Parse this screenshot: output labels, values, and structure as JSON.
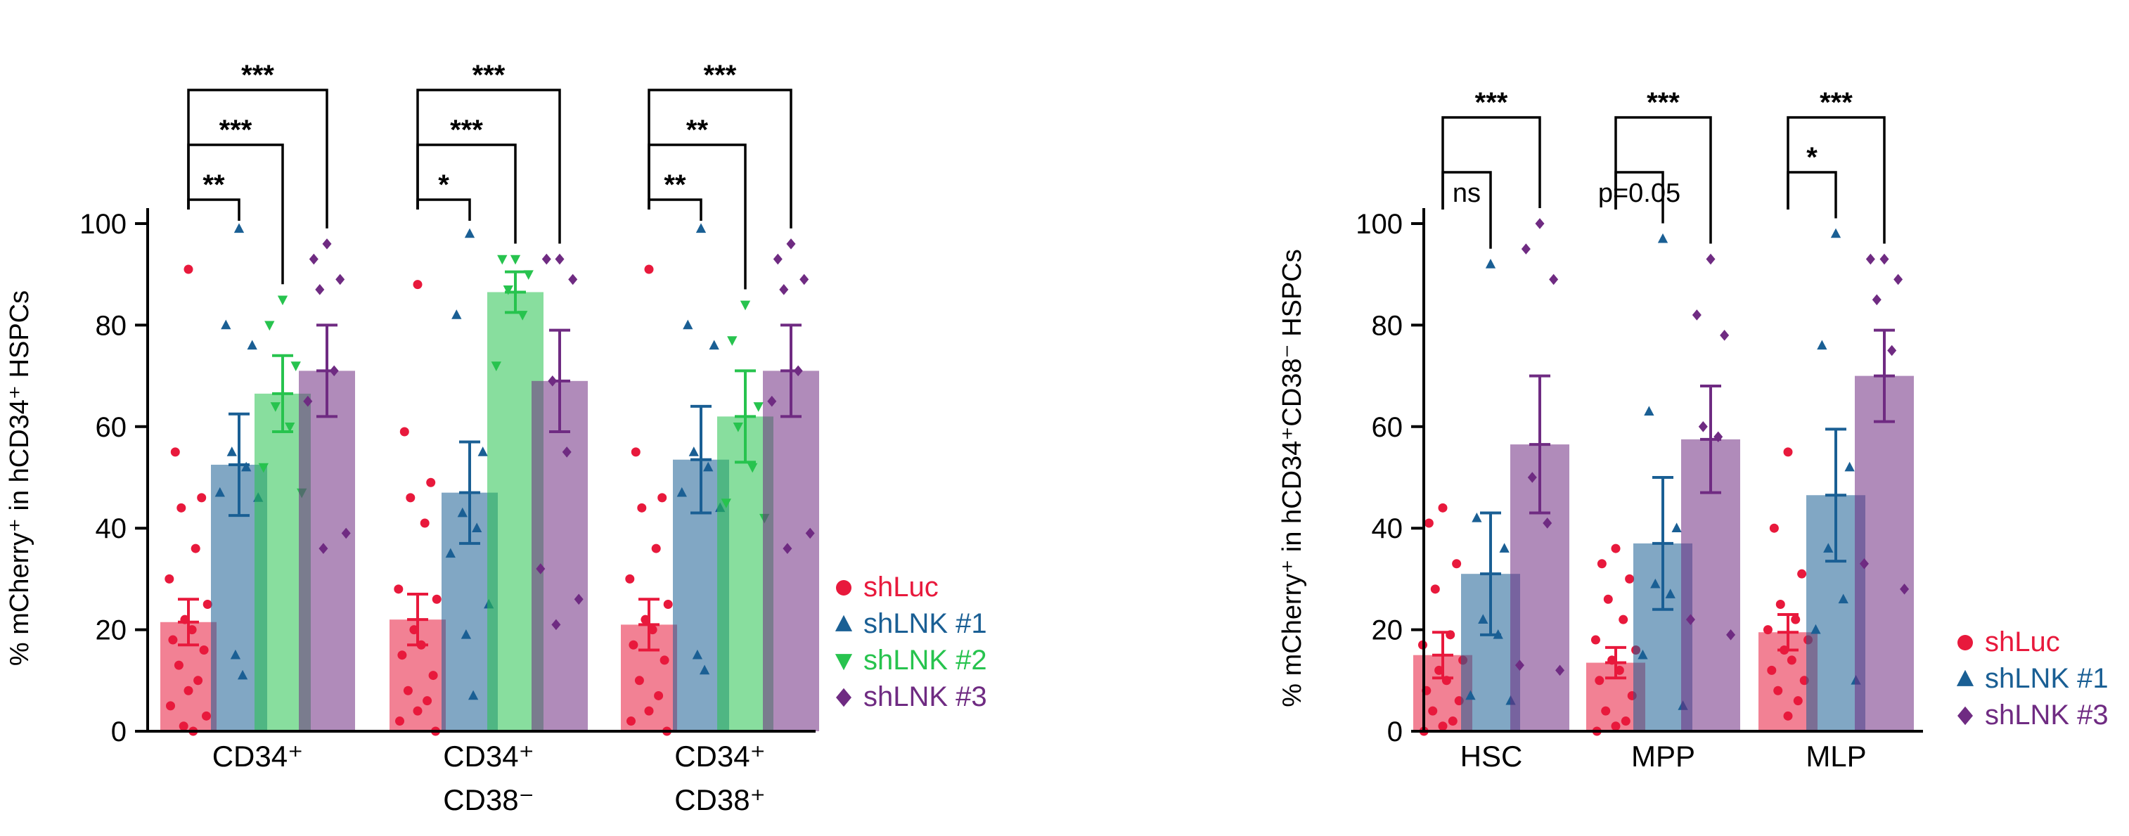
{
  "colors": {
    "shLuc": "#e8193c",
    "shLNK1": "#1a5f94",
    "shLNK2": "#27c34e",
    "shLNK3": "#6f2b82"
  },
  "chart_data": [
    {
      "type": "bar",
      "ylabel": "% mCherry⁺ in hCD34⁺ HSPCs",
      "ylim": [
        0,
        100
      ],
      "yticks": [
        "0",
        "20",
        "40",
        "60",
        "80",
        "100"
      ],
      "categories": [
        {
          "lines": [
            "CD34⁺"
          ]
        },
        {
          "lines": [
            "CD34⁺",
            "CD38⁻"
          ]
        },
        {
          "lines": [
            "CD34⁺",
            "CD38⁺"
          ]
        }
      ],
      "legend": [
        {
          "key": "shLuc",
          "label": "shLuc",
          "marker": "circle"
        },
        {
          "key": "shLNK1",
          "label": "shLNK #1",
          "marker": "triangle-up"
        },
        {
          "key": "shLNK2",
          "label": "shLNK #2",
          "marker": "triangle-down"
        },
        {
          "key": "shLNK3",
          "label": "shLNK #3",
          "marker": "diamond"
        }
      ],
      "series": [
        {
          "key": "shLuc",
          "marker": "circle",
          "means": [
            21.5,
            22,
            21
          ],
          "errors": [
            4.5,
            5,
            5
          ],
          "points": [
            [
              91,
              55,
              46,
              44,
              36,
              30,
              25,
              22,
              20,
              18,
              16,
              13,
              10,
              8,
              5,
              3,
              1,
              0
            ],
            [
              88,
              59,
              49,
              46,
              41,
              28,
              26,
              20,
              17,
              15,
              11,
              8,
              6,
              4,
              2,
              0
            ],
            [
              91,
              55,
              46,
              44,
              36,
              30,
              25,
              22,
              20,
              17,
              14,
              10,
              7,
              4,
              2,
              0
            ]
          ]
        },
        {
          "key": "shLNK1",
          "marker": "triangle-up",
          "means": [
            52.5,
            47,
            53.5
          ],
          "errors": [
            10,
            10,
            10.5
          ],
          "points": [
            [
              99,
              80,
              76,
              55,
              52,
              47,
              46,
              15,
              11
            ],
            [
              98,
              82,
              55,
              43,
              40,
              35,
              25,
              19,
              7
            ],
            [
              99,
              80,
              76,
              55,
              52,
              47,
              44,
              15,
              12
            ]
          ]
        },
        {
          "key": "shLNK2",
          "marker": "triangle-down",
          "means": [
            66.5,
            86.5,
            62
          ],
          "errors": [
            7.5,
            4,
            9
          ],
          "points": [
            [
              85,
              80,
              72,
              64,
              60,
              52,
              47
            ],
            [
              93,
              93,
              90,
              87,
              82,
              72
            ],
            [
              84,
              77,
              64,
              60,
              52,
              45,
              42
            ]
          ]
        },
        {
          "key": "shLNK3",
          "marker": "diamond",
          "means": [
            71,
            69,
            71
          ],
          "errors": [
            9,
            10,
            9
          ],
          "points": [
            [
              96,
              93,
              89,
              87,
              71,
              65,
              39,
              36
            ],
            [
              93,
              93,
              89,
              69,
              55,
              32,
              26,
              21
            ],
            [
              96,
              93,
              89,
              87,
              71,
              65,
              39,
              36
            ]
          ]
        }
      ],
      "significance": [
        {
          "category": 0,
          "labels": [
            "**",
            "***",
            "***"
          ]
        },
        {
          "category": 1,
          "labels": [
            "*",
            "***",
            "***"
          ]
        },
        {
          "category": 2,
          "labels": [
            "**",
            "**",
            "***"
          ]
        }
      ]
    },
    {
      "type": "bar",
      "ylabel": "% mCherry⁺ in hCD34⁺CD38⁻ HSPCs",
      "ylim": [
        0,
        100
      ],
      "yticks": [
        "0",
        "20",
        "40",
        "60",
        "80",
        "100"
      ],
      "categories": [
        {
          "lines": [
            "HSC"
          ]
        },
        {
          "lines": [
            "MPP"
          ]
        },
        {
          "lines": [
            "MLP"
          ]
        }
      ],
      "legend": [
        {
          "key": "shLuc",
          "label": "shLuc",
          "marker": "circle"
        },
        {
          "key": "shLNK1",
          "label": "shLNK #1",
          "marker": "triangle-up"
        },
        {
          "key": "shLNK3",
          "label": "shLNK #3",
          "marker": "diamond"
        }
      ],
      "series": [
        {
          "key": "shLuc",
          "marker": "circle",
          "means": [
            15,
            13.5,
            19.5
          ],
          "errors": [
            4.5,
            3,
            3.5
          ],
          "points": [
            [
              44,
              41,
              33,
              28,
              19,
              17,
              14,
              12,
              10,
              8,
              6,
              4,
              2,
              1,
              0
            ],
            [
              36,
              33,
              30,
              26,
              22,
              18,
              16,
              14,
              12,
              10,
              7,
              4,
              2,
              1,
              0
            ],
            [
              55,
              40,
              31,
              25,
              22,
              20,
              18,
              16,
              14,
              12,
              10,
              8,
              6,
              3
            ]
          ]
        },
        {
          "key": "shLNK1",
          "marker": "triangle-up",
          "means": [
            31,
            37,
            46.5
          ],
          "errors": [
            12,
            13,
            13
          ],
          "points": [
            [
              92,
              42,
              36,
              22,
              19,
              7,
              6
            ],
            [
              97,
              63,
              40,
              29,
              27,
              15,
              5
            ],
            [
              98,
              76,
              52,
              36,
              26,
              20,
              10
            ]
          ]
        },
        {
          "key": "shLNK3",
          "marker": "diamond",
          "means": [
            56.5,
            57.5,
            70
          ],
          "errors": [
            13.5,
            10.5,
            9
          ],
          "points": [
            [
              100,
              95,
              89,
              50,
              41,
              13,
              12
            ],
            [
              93,
              82,
              78,
              60,
              58,
              22,
              19
            ],
            [
              93,
              93,
              89,
              85,
              75,
              33,
              28
            ]
          ]
        }
      ],
      "significance": [
        {
          "category": 0,
          "labels": [
            "ns",
            "***"
          ]
        },
        {
          "category": 1,
          "labels": [
            "p=0.05",
            "***"
          ]
        },
        {
          "category": 2,
          "labels": [
            "*",
            "***"
          ]
        }
      ]
    }
  ]
}
